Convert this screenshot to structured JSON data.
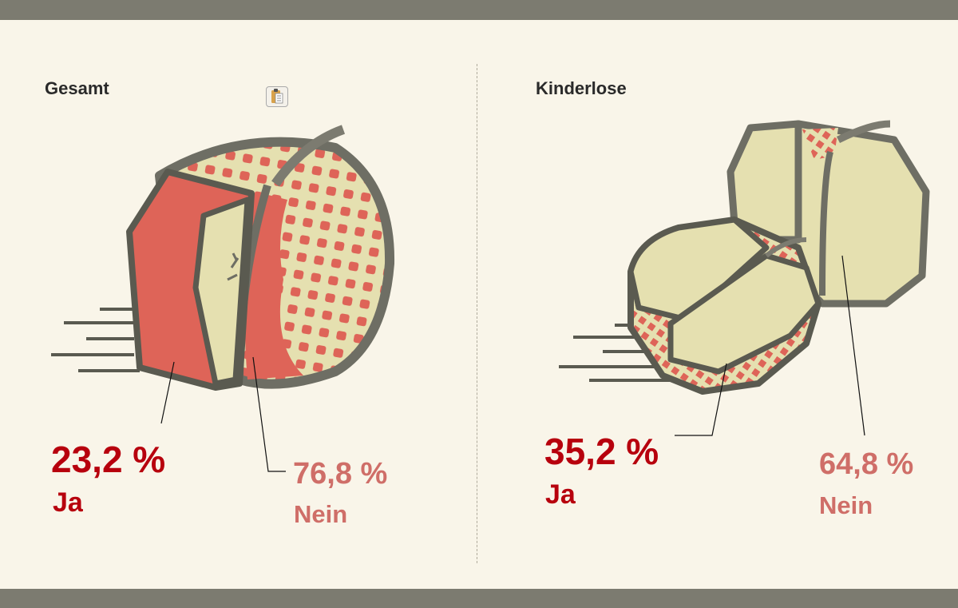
{
  "chart_data": [
    {
      "type": "pie",
      "title": "Gesamt",
      "categories": [
        "Ja",
        "Nein"
      ],
      "values": [
        23.2,
        76.8
      ],
      "value_labels": [
        "23,2 %",
        "76,8 %"
      ],
      "colors": {
        "Ja": "#b7000d",
        "Nein": "#cf6e68"
      }
    },
    {
      "type": "pie",
      "title": "Kinderlose",
      "categories": [
        "Ja",
        "Nein"
      ],
      "values": [
        35.2,
        64.8
      ],
      "value_labels": [
        "35,2 %",
        "64,8 %"
      ],
      "colors": {
        "Ja": "#b7000d",
        "Nein": "#cf6e68"
      }
    }
  ],
  "icons": {
    "clipboard": "clipboard-icon"
  },
  "colors": {
    "background": "#f9f5e9",
    "frame": "#7c7b70",
    "apple_red": "#de6458",
    "apple_flesh": "#e5e0b0",
    "outline": "#6e6e64"
  }
}
